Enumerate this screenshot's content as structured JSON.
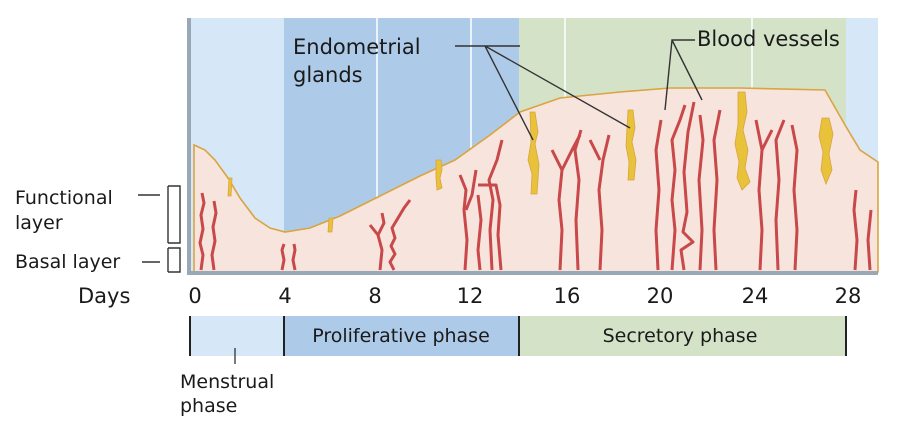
{
  "labels": {
    "endometrial_glands": [
      "Endometrial",
      "glands"
    ],
    "blood_vessels": "Blood vessels",
    "functional_layer": [
      "Functional",
      "layer"
    ],
    "basal_layer": "Basal layer",
    "days": "Days"
  },
  "day_ticks": [
    "0",
    "4",
    "8",
    "12",
    "16",
    "20",
    "24",
    "28"
  ],
  "phases": [
    {
      "label": "",
      "name": "menstrual",
      "start_day": 0,
      "end_day": 4,
      "color": "#d6e7f7"
    },
    {
      "label": "Proliferative phase",
      "name": "proliferative",
      "start_day": 4,
      "end_day": 14,
      "color": "#adcbe8"
    },
    {
      "label": "Secretory phase",
      "name": "secretory",
      "start_day": 14,
      "end_day": 28,
      "color": "#d4e3c8"
    }
  ],
  "menstrual_label": [
    "Menstrual",
    "phase"
  ],
  "colors": {
    "tissue": "#f7e4dc",
    "surface": "#d9a441",
    "gland": "#e8c23a",
    "vessel": "#c9484a"
  }
}
